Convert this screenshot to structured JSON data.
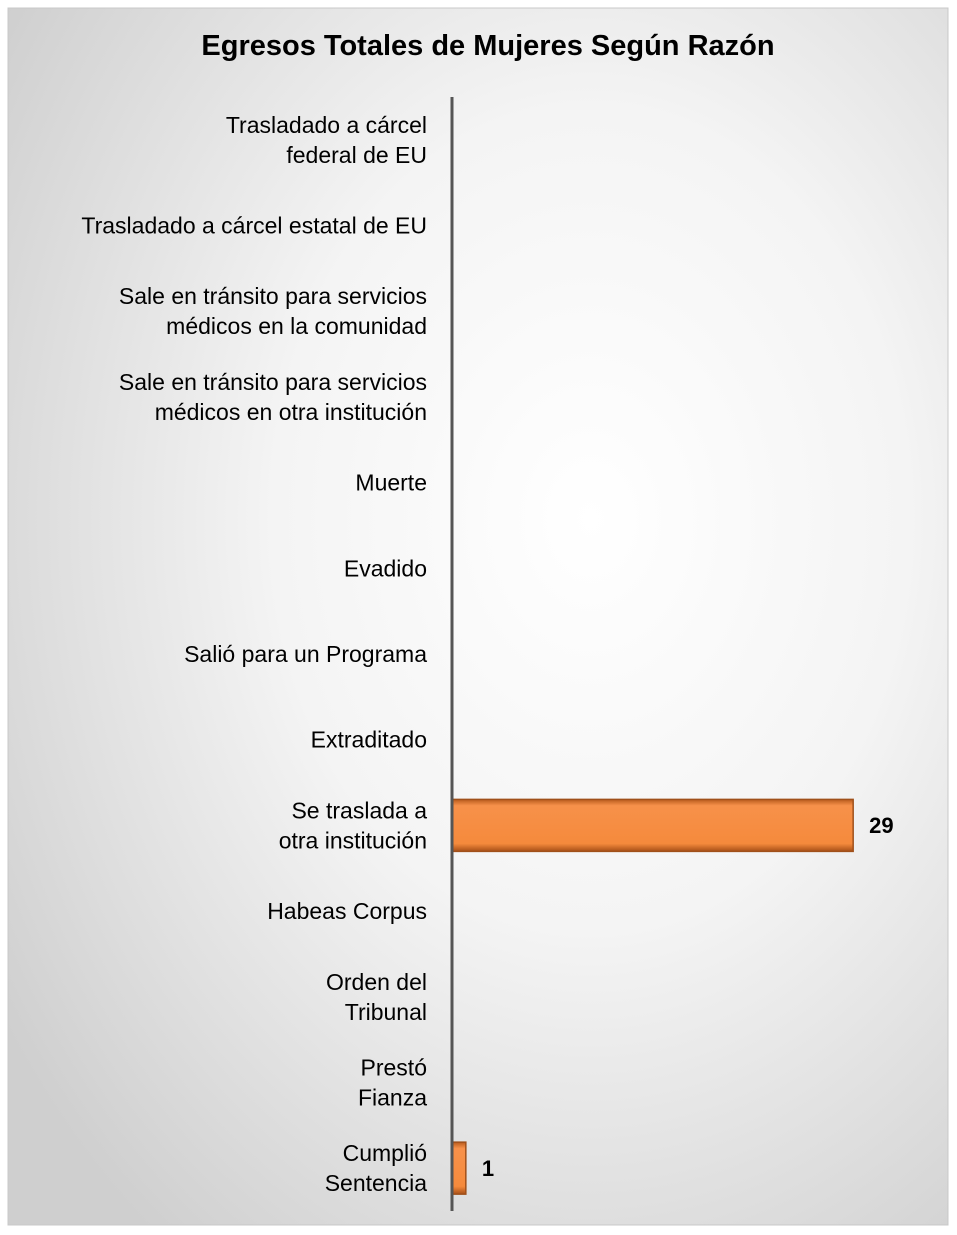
{
  "chart_data": {
    "type": "barh",
    "title": "Egresos Totales de Mujeres Según Razón",
    "categories": [
      "Trasladado a cárcel\nfederal de EU",
      "Trasladado a cárcel estatal de EU",
      "Sale en tránsito para servicios\nmédicos en la comunidad",
      "Sale en tránsito para servicios\nmédicos en otra institución",
      "Muerte",
      "Evadido",
      "Salió para un Programa",
      "Extraditado",
      "Se traslada a\notra institución",
      "Habeas Corpus",
      "Orden del\nTribunal",
      "Prestó\nFianza",
      "Cumplió\nSentencia"
    ],
    "values": [
      null,
      null,
      null,
      null,
      null,
      null,
      null,
      null,
      29,
      null,
      null,
      null,
      1
    ],
    "color": "#f58a3c",
    "xlim": [
      0,
      30
    ]
  }
}
